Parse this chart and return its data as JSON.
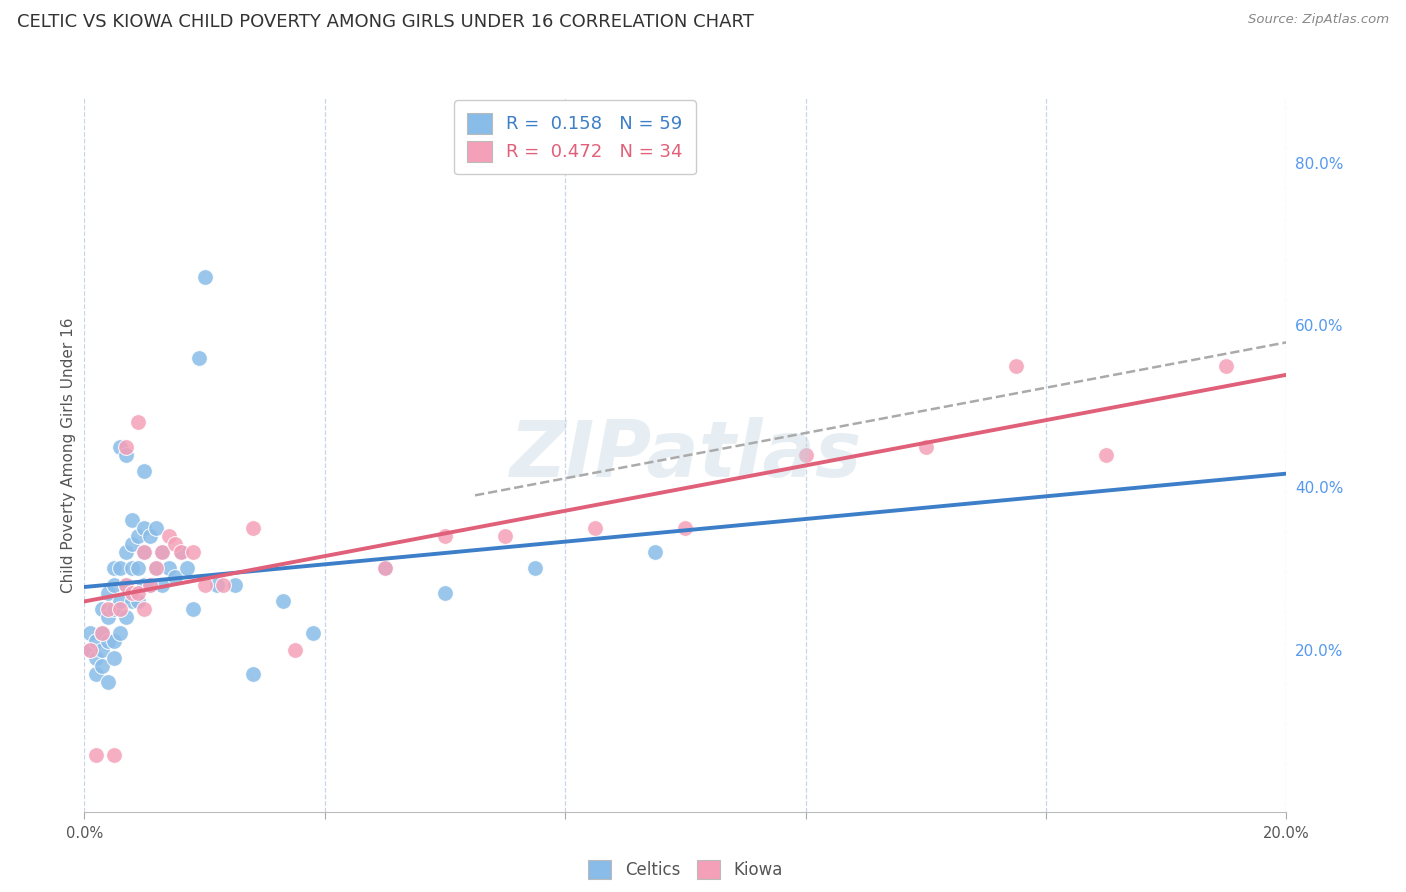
{
  "title": "CELTIC VS KIOWA CHILD POVERTY AMONG GIRLS UNDER 16 CORRELATION CHART",
  "source": "Source: ZipAtlas.com",
  "ylabel": "Child Poverty Among Girls Under 16",
  "xlim": [
    0.0,
    0.2
  ],
  "ylim": [
    0.0,
    0.88
  ],
  "right_ytick_positions": [
    0.0,
    0.2,
    0.4,
    0.6,
    0.8
  ],
  "right_ytick_labels": [
    "",
    "20.0%",
    "40.0%",
    "60.0%",
    "80.0%"
  ],
  "xtick_positions": [
    0.0,
    0.04,
    0.08,
    0.12,
    0.16,
    0.2
  ],
  "xtick_labels": [
    "0.0%",
    "",
    "",
    "",
    "",
    "20.0%"
  ],
  "celtics_R": 0.158,
  "celtics_N": 59,
  "kiowa_R": 0.472,
  "kiowa_N": 34,
  "celtics_color": "#89bce8",
  "kiowa_color": "#f4a0b8",
  "celtics_line_color": "#3d7ec8",
  "kiowa_line_color": "#e0607a",
  "dashed_line_color": "#aaaaaa",
  "background_color": "#ffffff",
  "grid_color": "#c8d4e8",
  "watermark": "ZIPatlas",
  "watermark_color": "#c0d4e0",
  "celtics_x": [
    0.001,
    0.001,
    0.002,
    0.002,
    0.002,
    0.003,
    0.003,
    0.003,
    0.003,
    0.004,
    0.004,
    0.004,
    0.004,
    0.005,
    0.005,
    0.005,
    0.005,
    0.005,
    0.006,
    0.006,
    0.006,
    0.006,
    0.007,
    0.007,
    0.007,
    0.007,
    0.008,
    0.008,
    0.008,
    0.008,
    0.009,
    0.009,
    0.009,
    0.01,
    0.01,
    0.01,
    0.01,
    0.011,
    0.011,
    0.012,
    0.012,
    0.013,
    0.013,
    0.014,
    0.015,
    0.016,
    0.017,
    0.018,
    0.019,
    0.02,
    0.022,
    0.025,
    0.028,
    0.033,
    0.038,
    0.05,
    0.06,
    0.075,
    0.095
  ],
  "celtics_y": [
    0.2,
    0.22,
    0.17,
    0.19,
    0.21,
    0.18,
    0.2,
    0.22,
    0.25,
    0.16,
    0.21,
    0.24,
    0.27,
    0.19,
    0.21,
    0.25,
    0.28,
    0.3,
    0.22,
    0.26,
    0.3,
    0.45,
    0.24,
    0.28,
    0.32,
    0.44,
    0.26,
    0.3,
    0.33,
    0.36,
    0.26,
    0.3,
    0.34,
    0.28,
    0.32,
    0.35,
    0.42,
    0.28,
    0.34,
    0.3,
    0.35,
    0.28,
    0.32,
    0.3,
    0.29,
    0.32,
    0.3,
    0.25,
    0.56,
    0.66,
    0.28,
    0.28,
    0.17,
    0.26,
    0.22,
    0.3,
    0.27,
    0.3,
    0.32
  ],
  "kiowa_x": [
    0.001,
    0.002,
    0.003,
    0.004,
    0.005,
    0.006,
    0.007,
    0.007,
    0.008,
    0.009,
    0.009,
    0.01,
    0.01,
    0.011,
    0.012,
    0.013,
    0.014,
    0.015,
    0.016,
    0.018,
    0.02,
    0.023,
    0.028,
    0.035,
    0.05,
    0.06,
    0.07,
    0.085,
    0.1,
    0.12,
    0.14,
    0.155,
    0.17,
    0.19
  ],
  "kiowa_y": [
    0.2,
    0.07,
    0.22,
    0.25,
    0.07,
    0.25,
    0.28,
    0.45,
    0.27,
    0.27,
    0.48,
    0.25,
    0.32,
    0.28,
    0.3,
    0.32,
    0.34,
    0.33,
    0.32,
    0.32,
    0.28,
    0.28,
    0.35,
    0.2,
    0.3,
    0.34,
    0.34,
    0.35,
    0.35,
    0.44,
    0.45,
    0.55,
    0.44,
    0.55
  ]
}
